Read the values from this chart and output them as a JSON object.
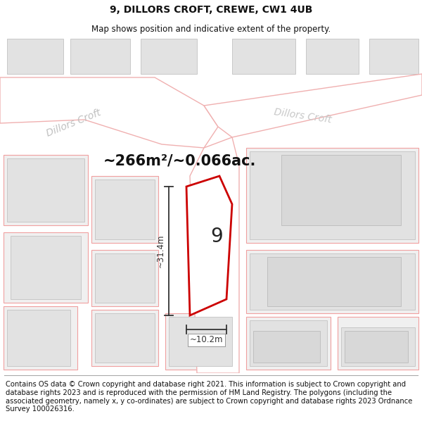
{
  "title": "9, DILLORS CROFT, CREWE, CW1 4UB",
  "subtitle": "Map shows position and indicative extent of the property.",
  "footer": "Contains OS data © Crown copyright and database right 2021. This information is subject to Crown copyright and database rights 2023 and is reproduced with the permission of HM Land Registry. The polygons (including the associated geometry, namely x, y co-ordinates) are subject to Crown copyright and database rights 2023 Ordnance Survey 100026316.",
  "area_label": "~266m²/~0.066ac.",
  "property_number": "9",
  "dim_width": "~10.2m",
  "dim_height": "~31.4m",
  "road_label1": "Dillors Croft",
  "road_label2": "Dillors Croft",
  "bg_color": "#ffffff",
  "map_bg": "#f5f5f5",
  "building_fill": "#e2e2e2",
  "building_edge": "#c8c8c8",
  "road_fill": "#ffffff",
  "road_edge": "#f0b0b0",
  "plot_edge": "#f0a0a0",
  "property_fill": "#ffffff",
  "property_edge": "#cc0000",
  "title_fontsize": 10,
  "subtitle_fontsize": 8.5,
  "footer_fontsize": 7.2,
  "dim_color": "#333333",
  "area_label_fontsize": 15,
  "property_label_fontsize": 20
}
